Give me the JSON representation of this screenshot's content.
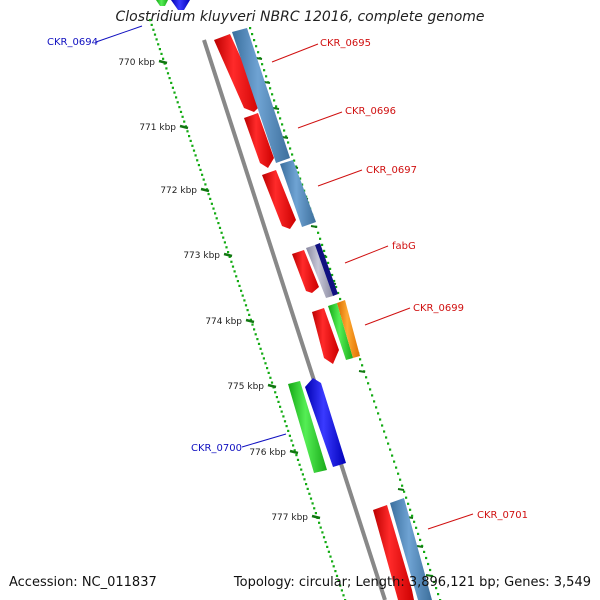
{
  "title": "Clostridium kluyveri NBRC 12016, complete genome",
  "footer": {
    "accession": "Accession: NC_011837",
    "topology": "Topology: circular; Length: 3,896,121 bp; Genes: 3,549"
  },
  "ticks": [
    "770 kbp",
    "771 kbp",
    "772 kbp",
    "773 kbp",
    "774 kbp",
    "775 kbp",
    "776 kbp",
    "777 kbp"
  ],
  "genes": [
    {
      "id": "ckr-0694",
      "label": "CKR_0694",
      "strand": "minus"
    },
    {
      "id": "ckr-0695",
      "label": "CKR_0695",
      "strand": "plus"
    },
    {
      "id": "ckr-0696",
      "label": "CKR_0696",
      "strand": "plus"
    },
    {
      "id": "ckr-0697",
      "label": "CKR_0697",
      "strand": "plus"
    },
    {
      "id": "fabg",
      "label": "fabG",
      "strand": "plus"
    },
    {
      "id": "ckr-0699",
      "label": "CKR_0699",
      "strand": "plus"
    },
    {
      "id": "ckr-0700",
      "label": "CKR_0700",
      "strand": "minus"
    },
    {
      "id": "ckr-0701",
      "label": "CKR_0701",
      "strand": "plus"
    }
  ],
  "colors": {
    "plus_label": "#d01010",
    "minus_label": "#1010c0",
    "cds_red": "#ee0000",
    "cds_blue": "#4f86b8",
    "cds_gray": "#9a9aaa",
    "cds_navy": "#101080",
    "cds_green": "#22cc22",
    "cds_orange": "#ff8800",
    "cds_dark_blue": "#1010dd",
    "backbone": "#888888",
    "tick_dot": "#11aa11",
    "tick_major": "#117711"
  }
}
